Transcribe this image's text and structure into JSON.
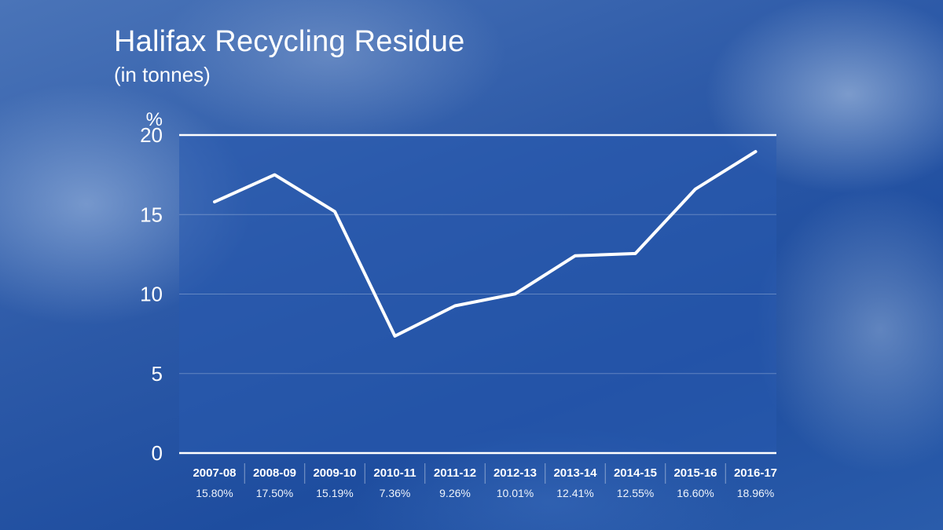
{
  "header": {
    "title": "Halifax Recycling Residue",
    "subtitle": "(in tonnes)"
  },
  "colors": {
    "line": "#ffffff",
    "panel": "#285aaf",
    "background": "#2d5aa8"
  },
  "chart_data": {
    "type": "line",
    "title": "Halifax Recycling Residue",
    "subtitle": "(in tonnes)",
    "ylabel": "%",
    "ylim": [
      0,
      20
    ],
    "yticks": [
      0,
      5,
      10,
      15,
      20
    ],
    "grid": true,
    "categories": [
      "2007-08",
      "2008-09",
      "2009-10",
      "2010-11",
      "2011-12",
      "2012-13",
      "2013-14",
      "2014-15",
      "2015-16",
      "2016-17"
    ],
    "value_labels": [
      "15.80%",
      "17.50%",
      "15.19%",
      "7.36%",
      "9.26%",
      "10.01%",
      "12.41%",
      "12.55%",
      "16.60%",
      "18.96%"
    ],
    "series": [
      {
        "values": [
          15.8,
          17.5,
          15.19,
          7.36,
          9.26,
          10.01,
          12.41,
          12.55,
          16.6,
          18.96
        ]
      }
    ]
  }
}
